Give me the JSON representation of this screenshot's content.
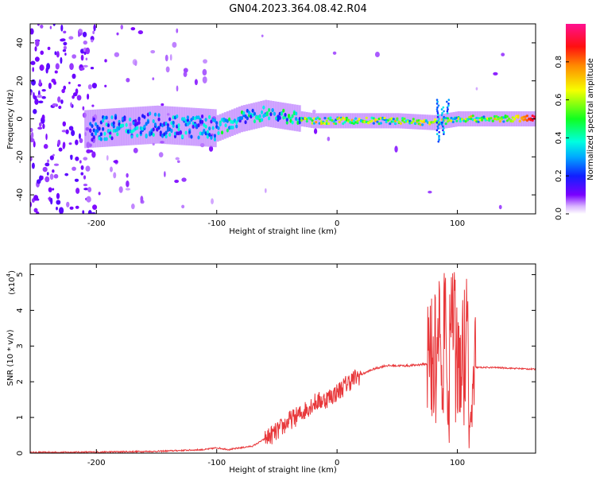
{
  "title": "GN04.2023.364.08.42.R04",
  "colors": {
    "snr_line": "#e8373a",
    "frame": "#000000",
    "background": "#ffffff"
  },
  "chart_data": [
    {
      "type": "heatmap",
      "xlabel": "Height of straight line (km)",
      "ylabel": "Frequency (Hz)",
      "xlim": [
        -255,
        165
      ],
      "ylim": [
        -50,
        50
      ],
      "xticks": [
        -200,
        -100,
        0,
        100
      ],
      "yticks": [
        -40,
        -20,
        0,
        20,
        40
      ],
      "colorbar": {
        "label": "Normalized spectral amplitude",
        "range": [
          0.0,
          1.0
        ],
        "ticks": [
          "0.0",
          "0.2",
          "0.4",
          "0.6",
          "0.8"
        ],
        "colormap": "rainbow (purple-blue-cyan-green-yellow-orange-red-magenta)"
      },
      "ridge_center_hz": [
        {
          "x": -200,
          "y": -5
        },
        {
          "x": -150,
          "y": -3
        },
        {
          "x": -100,
          "y": -5
        },
        {
          "x": -80,
          "y": 0
        },
        {
          "x": -60,
          "y": 3
        },
        {
          "x": -40,
          "y": 1
        },
        {
          "x": -20,
          "y": -1
        },
        {
          "x": 0,
          "y": -1
        },
        {
          "x": 50,
          "y": -1
        },
        {
          "x": 80,
          "y": -2
        },
        {
          "x": 100,
          "y": 0
        },
        {
          "x": 165,
          "y": 0
        }
      ]
    },
    {
      "type": "line",
      "xlabel": "Height of straight line (km)",
      "ylabel": "SNR (10 * v/v)",
      "y_scale_label": "(x10",
      "y_scale_exp": "4",
      "xlim": [
        -255,
        165
      ],
      "ylim": [
        0,
        5.3
      ],
      "xticks": [
        -200,
        -100,
        0,
        100
      ],
      "yticks": [
        0,
        1,
        2,
        3,
        4,
        5
      ],
      "series": [
        {
          "x": [
            -255,
            -200,
            -150,
            -110,
            -100,
            -90,
            -70,
            -60,
            -50,
            -40,
            -30,
            -20,
            -10,
            0,
            10,
            20,
            30,
            40,
            60,
            75,
            80,
            85,
            88,
            90,
            92,
            95,
            100,
            105,
            108,
            110,
            115,
            130,
            165
          ],
          "y": [
            0.02,
            0.03,
            0.05,
            0.1,
            0.15,
            0.1,
            0.2,
            0.4,
            0.6,
            0.9,
            1.1,
            1.4,
            1.5,
            1.7,
            2.0,
            2.2,
            2.35,
            2.45,
            2.45,
            2.5,
            2.3,
            3.0,
            1.0,
            5.3,
            0.3,
            4.6,
            2.2,
            2.4,
            4.0,
            0.5,
            2.4,
            2.4,
            2.35
          ]
        }
      ]
    }
  ]
}
